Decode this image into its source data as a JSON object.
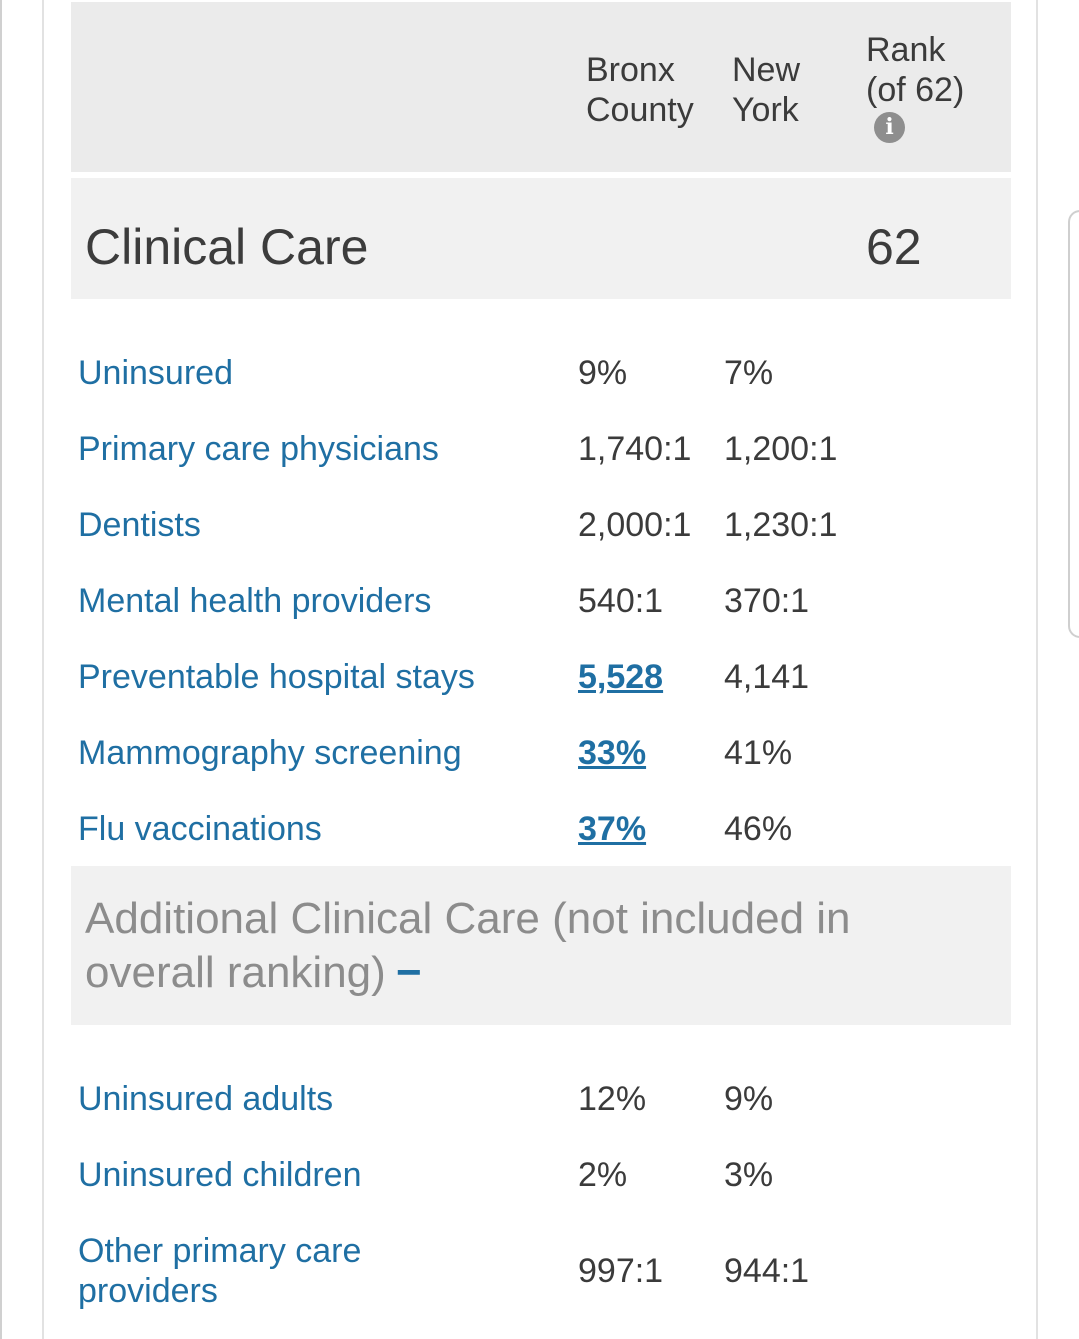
{
  "header": {
    "county_label_line1": "Bronx",
    "county_label_line2": "County",
    "state_label_line1": "New",
    "state_label_line2": "York",
    "rank_label_line1": "Rank",
    "rank_label_line2": "(of 62)",
    "info_icon_glyph": "i",
    "info_icon": "info-circle-icon"
  },
  "section": {
    "title": "Clinical Care",
    "rank": "62"
  },
  "rows": [
    {
      "label": "Uninsured",
      "county": "9%",
      "state": "7%"
    },
    {
      "label": "Primary care physicians",
      "county": "1,740:1",
      "state": "1,200:1"
    },
    {
      "label": "Dentists",
      "county": "2,000:1",
      "state": "1,230:1"
    },
    {
      "label": "Mental health providers",
      "county": "540:1",
      "state": "370:1"
    },
    {
      "label": "Preventable hospital stays",
      "county": "5,528",
      "state": "4,141"
    },
    {
      "label": "Mammography screening",
      "county": "33%",
      "state": "41%"
    },
    {
      "label": "Flu vaccinations",
      "county": "37%",
      "state": "46%"
    }
  ],
  "additional": {
    "title": "Additional Clinical Care (not included in overall ranking)",
    "toggle": "−",
    "rows": [
      {
        "label": "Uninsured adults",
        "county": "12%",
        "state": "9%"
      },
      {
        "label": "Uninsured children",
        "county": "2%",
        "state": "3%"
      },
      {
        "label_line1": "Other primary care",
        "label_line2": "providers",
        "county": "997:1",
        "state": "944:1"
      }
    ]
  },
  "colors": {
    "link_blue": "#1f6fa3",
    "header_bg": "#ebebeb",
    "section_bg": "#f1f1f1",
    "muted_text": "#8c8c8c"
  }
}
